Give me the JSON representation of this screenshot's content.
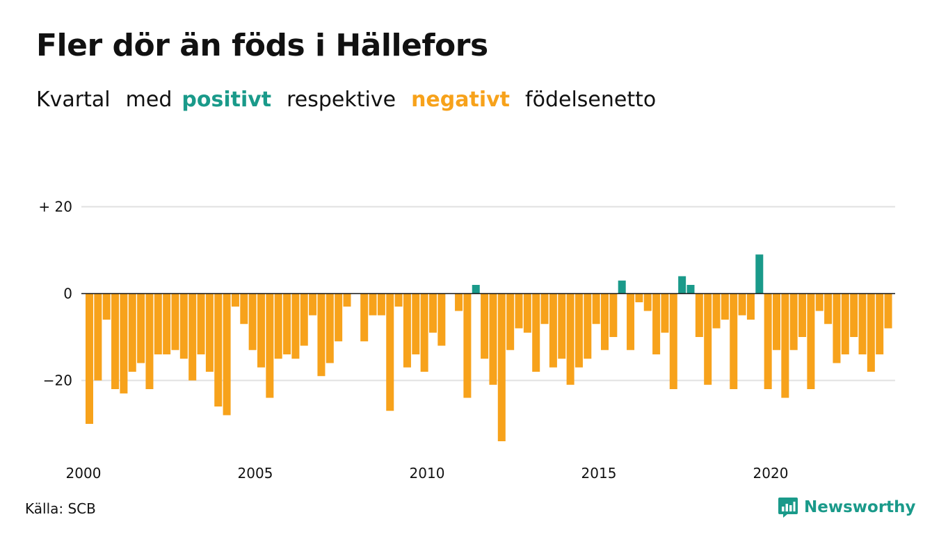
{
  "title": "Fler dör än föds i Hällefors",
  "subtitle": {
    "part1": "Kvartal",
    "part2": "med",
    "positive_word": "positivt",
    "part3": "respektive",
    "negative_word": "negativt",
    "part4": "födelsenetto"
  },
  "colors": {
    "positive": "#1a9a8a",
    "negative": "#f7a21b",
    "grid": "#e0e0e0",
    "axis": "#111111"
  },
  "source": "Källa: SCB",
  "brand": {
    "name": "Newsworthy",
    "icon": "newsworthy-logo-icon"
  },
  "chart_data": {
    "type": "bar",
    "x_start": "2000 Q1",
    "frequency": "quarterly",
    "ylim": [
      -36,
      22
    ],
    "y_ticks": [
      {
        "value": 20,
        "label": "+ 20"
      },
      {
        "value": 0,
        "label": "0"
      },
      {
        "value": -20,
        "label": "−20"
      }
    ],
    "x_ticks": [
      "2000",
      "2005",
      "2010",
      "2015",
      "2020"
    ],
    "values": [
      -30,
      -20,
      -6,
      -22,
      -23,
      -18,
      -16,
      -22,
      -14,
      -14,
      -13,
      -15,
      -20,
      -14,
      -18,
      -26,
      -28,
      -3,
      -7,
      -13,
      -17,
      -24,
      -15,
      -14,
      -15,
      -12,
      -5,
      -19,
      -16,
      -11,
      -3,
      0,
      -11,
      -5,
      -5,
      -27,
      -3,
      -17,
      -14,
      -18,
      -9,
      -12,
      0,
      -4,
      -24,
      2,
      -15,
      -21,
      -34,
      -13,
      -8,
      -9,
      -18,
      -7,
      -17,
      -15,
      -21,
      -17,
      -15,
      -7,
      -13,
      -10,
      3,
      -13,
      -2,
      -4,
      -14,
      -9,
      -22,
      4,
      2,
      -10,
      -21,
      -8,
      -6,
      -22,
      -5,
      -6,
      9,
      -22,
      -13,
      -24,
      -13,
      -10,
      -22,
      -4,
      -7,
      -16,
      -14,
      -10,
      -14,
      -18,
      -14,
      -8
    ]
  }
}
